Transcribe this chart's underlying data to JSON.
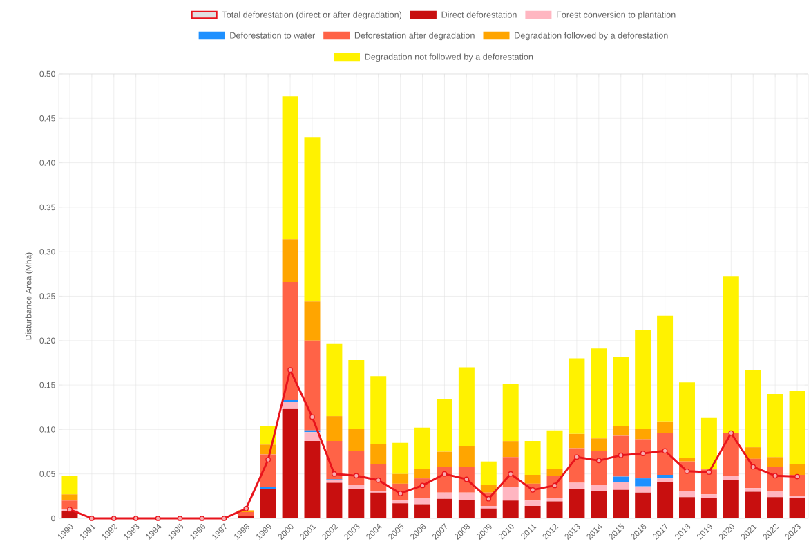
{
  "chart_data": {
    "type": "bar",
    "stacked": true,
    "ylabel": "Disturbance Area (Mha)",
    "legend": "top",
    "grid": true,
    "marker": "circle",
    "line_style": "solid",
    "categories": [
      "1990",
      "1991",
      "1992",
      "1993",
      "1994",
      "1995",
      "1996",
      "1997",
      "1998",
      "1999",
      "2000",
      "2001",
      "2002",
      "2003",
      "2004",
      "2005",
      "2006",
      "2007",
      "2008",
      "2009",
      "2010",
      "2011",
      "2012",
      "2013",
      "2014",
      "2015",
      "2016",
      "2017",
      "2018",
      "2019",
      "2020",
      "2021",
      "2022",
      "2023"
    ],
    "ylim": [
      0,
      0.5
    ],
    "yticks": [
      0,
      {
        "value": 0.05,
        "label": "0.05"
      },
      {
        "value": 0.1,
        "label": "0.10"
      },
      {
        "value": 0.15,
        "label": "0.15"
      },
      {
        "value": 0.2,
        "label": "0.20"
      },
      {
        "value": 0.25,
        "label": "0.25"
      },
      {
        "value": 0.3,
        "label": "0.30"
      },
      {
        "value": 0.35,
        "label": "0.35"
      },
      {
        "value": 0.4,
        "label": "0.40"
      },
      {
        "value": 0.45,
        "label": "0.45"
      },
      {
        "value": 0.5,
        "label": "0.50"
      }
    ],
    "series": [
      {
        "name": "Total deforestation (direct or after degradation)",
        "type": "line",
        "color": "#e8141c",
        "values": [
          0.01,
          0,
          0,
          0,
          0,
          0,
          0,
          0,
          0.011,
          0.066,
          0.167,
          0.114,
          0.05,
          0.048,
          0.043,
          0.028,
          0.037,
          0.05,
          0.044,
          0.022,
          0.05,
          0.032,
          0.037,
          0.069,
          0.065,
          0.071,
          0.073,
          0.076,
          0.053,
          0.052,
          0.096,
          0.058,
          0.048,
          0.047
        ]
      },
      {
        "name": "Direct deforestation",
        "color": "#c80f0f",
        "values": [
          0.008,
          0,
          0,
          0,
          0,
          0,
          0,
          0,
          0.003,
          0.033,
          0.123,
          0.087,
          0.04,
          0.033,
          0.029,
          0.017,
          0.016,
          0.022,
          0.021,
          0.011,
          0.02,
          0.014,
          0.019,
          0.033,
          0.031,
          0.032,
          0.029,
          0.041,
          0.024,
          0.023,
          0.043,
          0.03,
          0.024,
          0.023
        ]
      },
      {
        "name": "Forest conversion to plantation",
        "color": "#ffb6c1",
        "values": [
          0.002,
          0,
          0,
          0,
          0,
          0,
          0,
          0,
          0,
          null,
          0.008,
          0.01,
          0.003,
          0.005,
          0.002,
          0.003,
          0.007,
          0.007,
          0.008,
          0.003,
          0.015,
          0.006,
          0.004,
          0.007,
          0.007,
          0.009,
          0.007,
          0.004,
          0.007,
          0.004,
          0.005,
          0.004,
          0.006,
          0.002
        ]
      },
      {
        "name": "Deforestation to water",
        "color": "#1e90ff",
        "values": [
          null,
          0,
          0,
          0,
          0,
          0,
          0,
          0,
          0,
          0.002,
          0.002,
          0.002,
          0.001,
          0,
          0,
          0,
          0,
          0,
          0,
          0,
          0,
          0,
          0,
          0,
          0,
          0.006,
          0.009,
          0.004,
          0,
          0,
          0,
          0,
          0,
          0
        ]
      },
      {
        "name": "Deforestation after degradation",
        "color": "#ff6347",
        "values": [
          0.01,
          0,
          0,
          0,
          0,
          0,
          0,
          0,
          0.004,
          0.037,
          0.133,
          0.101,
          0.043,
          0.038,
          0.03,
          0.019,
          0.022,
          0.029,
          0.029,
          0.015,
          0.034,
          0.019,
          0.025,
          0.039,
          0.038,
          0.046,
          0.044,
          0.047,
          0.033,
          0.028,
          0.048,
          0.033,
          0.028,
          0.024
        ]
      },
      {
        "name": "Degradation followed by a deforestation",
        "color": "#ffa500",
        "values": [
          0.007,
          0,
          0,
          0,
          0,
          0,
          0,
          0,
          0.002,
          0.011,
          0.048,
          0.044,
          0.028,
          0.025,
          0.023,
          0.011,
          0.011,
          0.017,
          0.023,
          0.009,
          0.018,
          0.01,
          0.008,
          0.016,
          0.014,
          0.011,
          0.012,
          0.013,
          0.004,
          0,
          0,
          0.013,
          0.011,
          0.012
        ]
      },
      {
        "name": "Degradation not followed by a deforestation",
        "color": "#fff200",
        "values": [
          0.021,
          0,
          0,
          0,
          0,
          0,
          0,
          0,
          null,
          0.021,
          0.161,
          0.185,
          0.082,
          0.077,
          0.076,
          0.035,
          0.046,
          0.059,
          0.089,
          0.026,
          0.064,
          0.038,
          0.043,
          0.085,
          0.101,
          0.078,
          0.111,
          0.119,
          0.085,
          0.058,
          0.176,
          0.087,
          0.071,
          0.082
        ]
      }
    ]
  }
}
